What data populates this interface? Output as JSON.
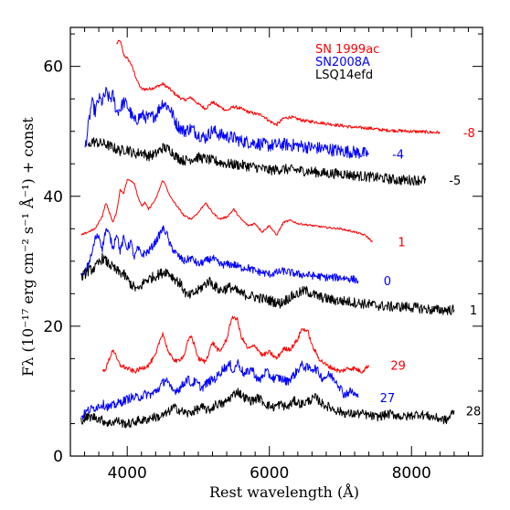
{
  "chart_data": {
    "type": "line",
    "title": "",
    "xlabel": "Rest wavelength (Å)",
    "ylabel": "Fλ (10⁻¹⁷ erg cm⁻² s⁻¹ Å⁻¹) + const",
    "xlim": [
      3200,
      9000
    ],
    "ylim": [
      0,
      66
    ],
    "xticks": [
      4000,
      6000,
      8000
    ],
    "yticks": [
      0,
      20,
      40,
      60
    ],
    "grid": false,
    "legend_position": "top-right",
    "legend": [
      {
        "name": "SN 1999ac",
        "color": "#ff0000"
      },
      {
        "name": "SN2008A",
        "color": "#0000ff"
      },
      {
        "name": "LSQ14efd",
        "color": "#000000"
      }
    ],
    "series": [
      {
        "name": "SN 1999ac",
        "epoch": "-8",
        "color": "#ff0000",
        "noise": 0.25,
        "x": [
          3850,
          3900,
          3950,
          4000,
          4050,
          4100,
          4150,
          4200,
          4300,
          4400,
          4500,
          4600,
          4700,
          4800,
          4900,
          5000,
          5100,
          5200,
          5300,
          5400,
          5500,
          5600,
          5700,
          5800,
          5900,
          6000,
          6100,
          6200,
          6300,
          6400,
          6500,
          6600,
          6800,
          7000,
          7200,
          7400,
          7600,
          7800,
          8000,
          8200,
          8400
        ],
        "y": [
          63.5,
          64.0,
          61.8,
          61.2,
          60.5,
          59.0,
          57.5,
          56.5,
          56.5,
          56.8,
          57.3,
          56.5,
          55.5,
          54.8,
          55.2,
          54.2,
          53.5,
          54.5,
          53.8,
          53.2,
          53.8,
          53.5,
          53.0,
          52.7,
          52.5,
          51.6,
          51.0,
          52.0,
          52.2,
          51.9,
          51.6,
          51.5,
          51.2,
          50.9,
          50.6,
          50.5,
          50.2,
          50.1,
          50.0,
          49.9,
          49.8
        ]
      },
      {
        "name": "SN2008A",
        "epoch": "-4",
        "color": "#0000ff",
        "noise": 1.0,
        "x": [
          3400,
          3450,
          3500,
          3550,
          3600,
          3650,
          3700,
          3750,
          3800,
          3850,
          3900,
          3950,
          4000,
          4100,
          4200,
          4300,
          4400,
          4500,
          4600,
          4700,
          4800,
          4900,
          5000,
          5100,
          5200,
          5300,
          5400,
          5500,
          5600,
          5800,
          6000,
          6200,
          6400,
          6600,
          6800,
          7000,
          7200,
          7400
        ],
        "y": [
          47.0,
          50.5,
          54.5,
          53.0,
          55.0,
          54.5,
          56.0,
          55.0,
          55.5,
          53.0,
          53.5,
          54.5,
          54.0,
          51.5,
          52.5,
          52.0,
          52.5,
          54.5,
          53.5,
          51.0,
          50.0,
          50.5,
          49.5,
          49.0,
          50.2,
          49.5,
          49.2,
          49.0,
          48.5,
          48.2,
          47.8,
          48.0,
          47.8,
          47.5,
          47.3,
          47.0,
          46.8,
          46.5
        ]
      },
      {
        "name": "LSQ14efd",
        "epoch": "-5",
        "color": "#000000",
        "noise": 0.8,
        "x": [
          3450,
          3500,
          3600,
          3700,
          3800,
          3900,
          4000,
          4100,
          4200,
          4300,
          4400,
          4500,
          4600,
          4700,
          4800,
          5000,
          5200,
          5400,
          5600,
          5800,
          6000,
          6200,
          6400,
          6600,
          6800,
          7000,
          7200,
          7400,
          7600,
          7800,
          8000,
          8200
        ],
        "y": [
          47.5,
          48.5,
          48.2,
          48.0,
          47.5,
          47.0,
          47.3,
          46.5,
          46.8,
          46.2,
          46.5,
          47.5,
          47.2,
          46.0,
          45.5,
          46.0,
          45.5,
          45.0,
          44.8,
          44.5,
          44.0,
          44.2,
          44.0,
          43.8,
          43.5,
          43.5,
          43.2,
          43.0,
          42.8,
          42.5,
          42.5,
          42.5
        ]
      },
      {
        "name": "SN 1999ac",
        "epoch": "1",
        "color": "#ff0000",
        "noise": 0.15,
        "x": [
          3350,
          3450,
          3550,
          3650,
          3700,
          3750,
          3800,
          3850,
          3900,
          3950,
          4000,
          4050,
          4100,
          4150,
          4200,
          4250,
          4300,
          4400,
          4500,
          4550,
          4600,
          4700,
          4800,
          4900,
          5000,
          5100,
          5200,
          5300,
          5400,
          5500,
          5600,
          5700,
          5800,
          5900,
          6000,
          6100,
          6200,
          6300,
          6400,
          6600,
          6800,
          7000,
          7200,
          7350,
          7400,
          7450
        ],
        "y": [
          34.0,
          34.5,
          35.0,
          37.0,
          39.0,
          37.5,
          36.0,
          37.5,
          41.0,
          40.5,
          42.5,
          42.5,
          42.0,
          40.0,
          38.5,
          39.0,
          38.0,
          39.5,
          42.5,
          41.5,
          40.0,
          38.5,
          37.0,
          36.5,
          37.5,
          39.0,
          37.5,
          36.5,
          36.8,
          38.0,
          36.5,
          35.5,
          35.8,
          34.5,
          35.5,
          34.0,
          36.0,
          36.3,
          35.8,
          35.5,
          35.2,
          35.0,
          34.5,
          34.0,
          33.5,
          33.0
        ]
      },
      {
        "name": "SN2008A",
        "epoch": "0",
        "color": "#0000ff",
        "noise": 0.6,
        "x": [
          3350,
          3400,
          3500,
          3550,
          3600,
          3650,
          3700,
          3750,
          3800,
          3850,
          3900,
          3950,
          4000,
          4050,
          4100,
          4150,
          4200,
          4300,
          4400,
          4500,
          4550,
          4600,
          4700,
          4800,
          4900,
          5000,
          5100,
          5200,
          5300,
          5400,
          5500,
          5600,
          5700,
          5800,
          6000,
          6200,
          6400,
          6600,
          6800,
          7000,
          7200,
          7250
        ],
        "y": [
          27.5,
          28.0,
          31.0,
          33.5,
          34.0,
          32.0,
          35.0,
          34.0,
          32.0,
          34.5,
          31.5,
          33.5,
          32.0,
          33.0,
          30.5,
          32.0,
          31.0,
          31.5,
          33.0,
          35.0,
          34.5,
          32.5,
          31.0,
          30.0,
          30.5,
          29.5,
          30.0,
          30.5,
          29.5,
          29.5,
          29.5,
          29.0,
          29.0,
          28.5,
          28.0,
          28.5,
          28.0,
          27.8,
          27.5,
          27.5,
          27.2,
          27.0
        ]
      },
      {
        "name": "LSQ14efd",
        "epoch": "1",
        "color": "#000000",
        "noise": 0.8,
        "x": [
          3350,
          3450,
          3550,
          3650,
          3750,
          3850,
          3950,
          4050,
          4150,
          4250,
          4350,
          4450,
          4550,
          4650,
          4750,
          4850,
          5000,
          5150,
          5300,
          5450,
          5600,
          5800,
          6000,
          6150,
          6300,
          6500,
          6700,
          6900,
          7100,
          7300,
          7500,
          7700,
          7900,
          8100,
          8300,
          8500,
          8600
        ],
        "y": [
          27.5,
          28.5,
          29.0,
          30.5,
          29.5,
          28.5,
          28.0,
          26.5,
          25.5,
          27.0,
          27.5,
          28.0,
          28.5,
          27.5,
          26.5,
          24.5,
          25.5,
          27.0,
          25.5,
          26.0,
          25.0,
          24.5,
          24.0,
          23.5,
          24.5,
          25.5,
          24.5,
          24.0,
          23.8,
          23.5,
          23.2,
          23.0,
          23.0,
          22.8,
          22.5,
          22.5,
          22.5
        ]
      },
      {
        "name": "SN 1999ac",
        "epoch": "29",
        "color": "#ff0000",
        "noise": 0.35,
        "x": [
          3650,
          3700,
          3750,
          3800,
          3850,
          3900,
          4000,
          4100,
          4200,
          4300,
          4400,
          4450,
          4500,
          4550,
          4600,
          4700,
          4800,
          4850,
          4900,
          4950,
          5000,
          5100,
          5200,
          5300,
          5400,
          5450,
          5500,
          5550,
          5600,
          5700,
          5800,
          5900,
          6000,
          6100,
          6200,
          6300,
          6400,
          6450,
          6500,
          6550,
          6600,
          6700,
          6800,
          6900,
          7000,
          7100,
          7200,
          7300,
          7400
        ],
        "y": [
          13.0,
          13.5,
          15.0,
          16.5,
          15.0,
          14.0,
          13.5,
          13.0,
          13.5,
          14.0,
          15.5,
          17.5,
          19.0,
          17.0,
          15.5,
          14.5,
          15.5,
          17.5,
          18.5,
          17.0,
          15.0,
          14.5,
          17.5,
          16.0,
          18.0,
          20.5,
          21.5,
          21.0,
          18.5,
          16.5,
          17.0,
          15.5,
          16.0,
          15.0,
          16.5,
          16.5,
          18.0,
          19.5,
          19.5,
          19.0,
          17.0,
          15.0,
          14.0,
          13.5,
          13.0,
          13.5,
          13.5,
          13.0,
          14.0
        ]
      },
      {
        "name": "SN2008A",
        "epoch": "27",
        "color": "#0000ff",
        "noise": 0.7,
        "x": [
          3350,
          3450,
          3550,
          3650,
          3750,
          3850,
          3950,
          4050,
          4150,
          4250,
          4350,
          4450,
          4550,
          4600,
          4650,
          4750,
          4850,
          4900,
          4950,
          5050,
          5150,
          5250,
          5350,
          5450,
          5500,
          5550,
          5650,
          5750,
          5850,
          5950,
          6050,
          6150,
          6250,
          6350,
          6450,
          6550,
          6650,
          6750,
          6850,
          6950,
          7050,
          7150,
          7250
        ],
        "y": [
          6.0,
          7.0,
          7.5,
          8.0,
          7.5,
          8.0,
          8.5,
          9.0,
          9.0,
          9.5,
          9.5,
          10.5,
          12.0,
          10.5,
          10.0,
          10.5,
          12.0,
          11.0,
          11.5,
          10.5,
          11.5,
          12.0,
          13.5,
          14.0,
          13.0,
          14.5,
          12.5,
          13.5,
          11.5,
          13.0,
          12.0,
          12.0,
          11.5,
          12.5,
          14.0,
          13.5,
          13.5,
          12.0,
          12.5,
          11.5,
          9.5,
          10.0,
          9.0
        ]
      },
      {
        "name": "LSQ14efd",
        "epoch": "28",
        "color": "#000000",
        "noise": 0.7,
        "x": [
          3350,
          3450,
          3550,
          3650,
          3750,
          3850,
          3950,
          4050,
          4150,
          4250,
          4350,
          4450,
          4550,
          4650,
          4750,
          4850,
          4950,
          5050,
          5150,
          5250,
          5350,
          5450,
          5550,
          5650,
          5750,
          5850,
          5950,
          6050,
          6150,
          6250,
          6350,
          6450,
          6550,
          6650,
          6750,
          6850,
          6950,
          7100,
          7300,
          7500,
          7700,
          7900,
          8100,
          8300,
          8500,
          8600
        ],
        "y": [
          5.5,
          6.0,
          6.0,
          5.5,
          5.0,
          5.5,
          5.0,
          5.0,
          5.5,
          5.5,
          6.0,
          6.0,
          6.5,
          7.5,
          7.0,
          6.5,
          7.0,
          7.5,
          7.0,
          8.0,
          8.0,
          9.0,
          10.0,
          9.0,
          8.5,
          9.0,
          8.0,
          7.5,
          8.0,
          7.5,
          8.5,
          8.0,
          8.5,
          9.0,
          8.0,
          7.5,
          7.0,
          6.5,
          6.5,
          6.0,
          6.5,
          6.0,
          6.5,
          6.0,
          5.5,
          7.0
        ]
      }
    ]
  }
}
